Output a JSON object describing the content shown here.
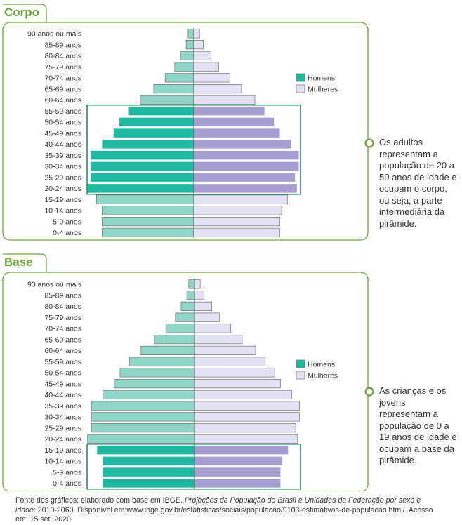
{
  "colors": {
    "men_light": "#8fd6c8",
    "men_dark": "#1fb9a2",
    "women_light": "#e3e1f4",
    "women_dark": "#a59ed1",
    "stroke": "#6f6f6f",
    "frame_green": "#6aa33a",
    "highlight_green": "#1a9560"
  },
  "chart_data": [
    {
      "type": "bar",
      "title": "Corpo",
      "categories": [
        "90 anos ou mais",
        "85-89 anos",
        "80-84 anos",
        "75-79 anos",
        "70-74 anos",
        "65-69 anos",
        "60-64 anos",
        "55-59 anos",
        "50-54 anos",
        "45-49 anos",
        "40-44 anos",
        "35-39 anos",
        "30-34 anos",
        "25-29 anos",
        "20-24 anos",
        "15-19 anos",
        "10-14 anos",
        "5-9 anos",
        "0-4 anos"
      ],
      "series": [
        {
          "name": "Homens",
          "values": [
            0.3,
            0.4,
            0.7,
            1.0,
            1.5,
            2.1,
            2.8,
            3.4,
            3.9,
            4.2,
            4.8,
            5.4,
            5.4,
            5.4,
            5.6,
            5.1,
            4.8,
            4.8,
            4.8
          ]
        },
        {
          "name": "Mulheres",
          "values": [
            0.3,
            0.5,
            0.9,
            1.3,
            1.9,
            2.5,
            3.2,
            3.7,
            4.2,
            4.5,
            5.1,
            5.5,
            5.5,
            5.3,
            5.4,
            4.9,
            4.6,
            4.5,
            4.5
          ]
        }
      ],
      "highlight": [
        "20-24 anos",
        "55-59 anos"
      ],
      "legend": "right"
    },
    {
      "type": "bar",
      "title": "Base",
      "categories": [
        "90 anos ou mais",
        "85-89 anos",
        "80-84 anos",
        "75-79 anos",
        "70-74 anos",
        "65-69 anos",
        "60-64 anos",
        "55-59 anos",
        "50-54 anos",
        "45-49 anos",
        "40-44 anos",
        "35-39 anos",
        "30-34 anos",
        "25-29 anos",
        "20-24 anos",
        "15-19 anos",
        "10-14 anos",
        "5-9 anos",
        "0-4 anos"
      ],
      "series": [
        {
          "name": "Homens",
          "values": [
            0.3,
            0.4,
            0.7,
            1.0,
            1.5,
            2.1,
            2.8,
            3.4,
            3.9,
            4.2,
            4.8,
            5.4,
            5.4,
            5.4,
            5.6,
            5.1,
            4.8,
            4.8,
            4.8
          ]
        },
        {
          "name": "Mulheres",
          "values": [
            0.3,
            0.5,
            0.9,
            1.3,
            1.9,
            2.5,
            3.2,
            3.7,
            4.2,
            4.5,
            5.1,
            5.5,
            5.5,
            5.3,
            5.4,
            4.9,
            4.6,
            4.5,
            4.5
          ]
        }
      ],
      "highlight": [
        "0-4 anos",
        "15-19 anos"
      ],
      "legend": "right"
    }
  ],
  "legend_labels": {
    "men": "Homens",
    "women": "Mulheres"
  },
  "notes": {
    "corpo": "Os adultos representam a população de 20 a 59 anos de idade e ocupam o corpo, ou seja, a parte intermediária da pirâmide.",
    "base": "As crianças e os jovens representam a população de 0 a 19 anos de idade e ocupam a base da pirâmide."
  },
  "source": {
    "prefix": "Fonte dos gráficos: elaborado com base em IBGE. ",
    "italic": "Projeções da População do Brasil e Unidades da Federação por sexo e idade",
    "suffix": ": 2010-2060. Disponível em:www.ibge.gov.br/estatisticas/sociais/populacao/9103-estimativas-de-populacao.html/. Acesso em: 15 set. 2020."
  }
}
